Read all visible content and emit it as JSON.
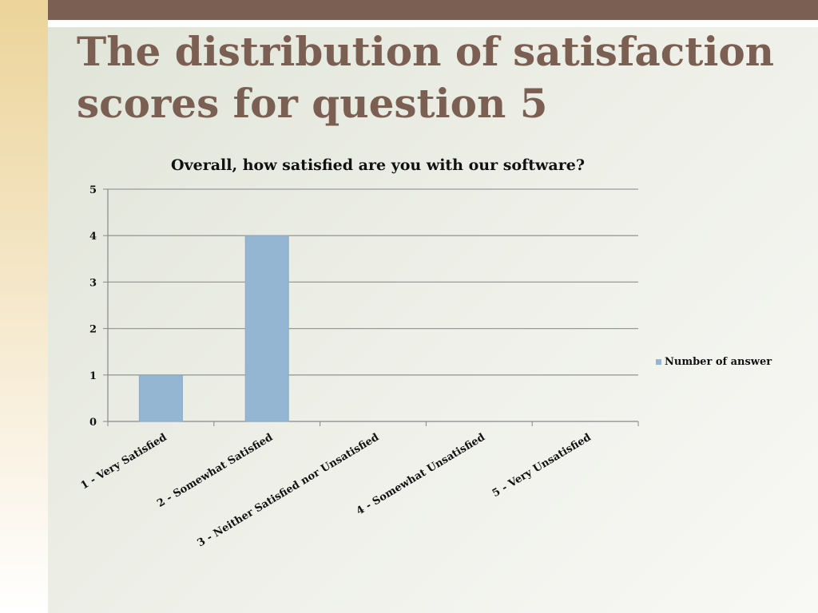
{
  "slide": {
    "title": "The distribution of satisfaction scores for question 5"
  },
  "colors": {
    "accent_bar": "#7a5f52",
    "title": "#7a5f52",
    "left_strip": "#ecd49a",
    "bar_fill": "#94b6d2",
    "gridline": "#9a9a9a"
  },
  "chart_data": {
    "type": "bar",
    "title": "Overall, how satisfied are you with our software?",
    "categories": [
      "1 - Very Satisfied",
      "2 - Somewhat Satisfied",
      "3 - Neither Satisfied nor Unsatisfied",
      "4 - Somewhat Unsatisfied",
      "5 - Very Unsatisfied"
    ],
    "series": [
      {
        "name": "Number of answer",
        "values": [
          1,
          4,
          0,
          0,
          0
        ]
      }
    ],
    "ylim": [
      0,
      5
    ],
    "yticks": [
      0,
      1,
      2,
      3,
      4,
      5
    ],
    "grid": true,
    "legend_position": "right"
  }
}
